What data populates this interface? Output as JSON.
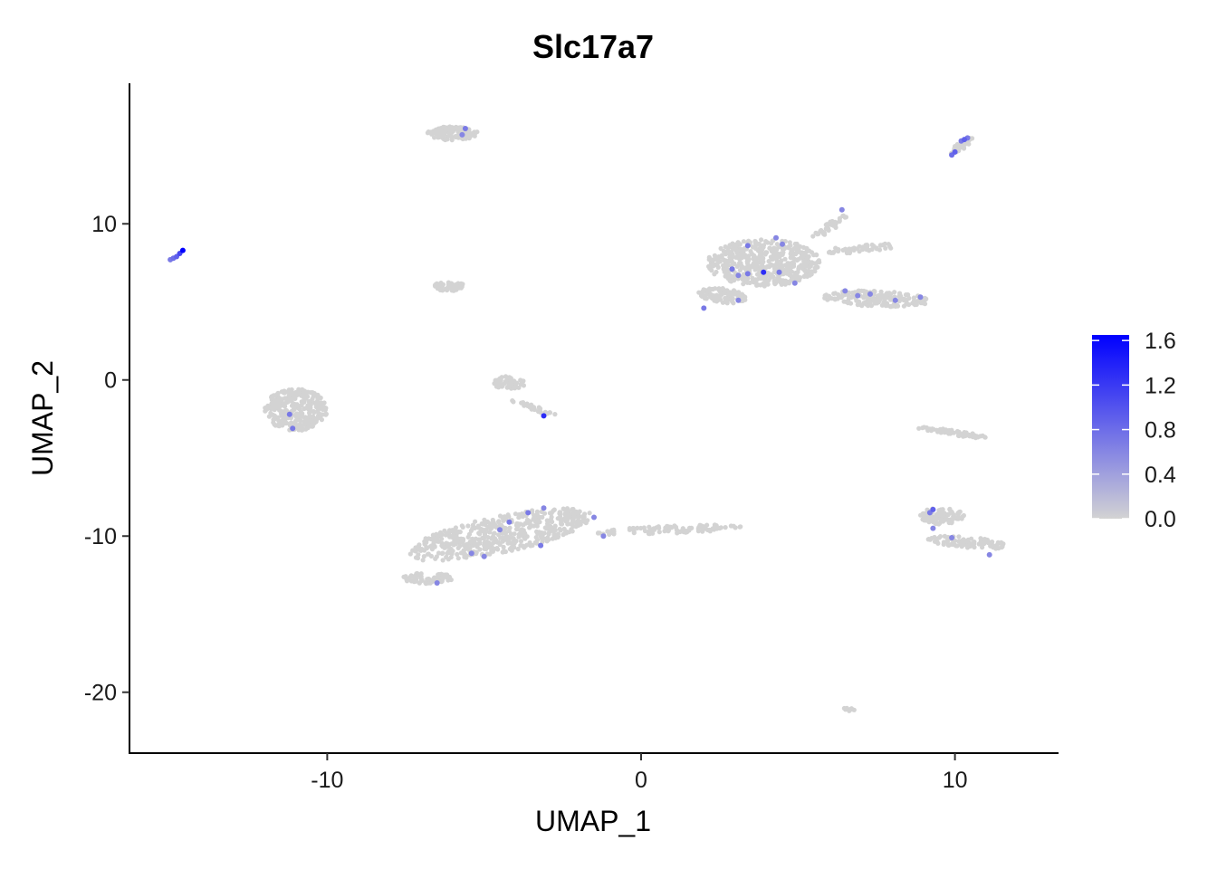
{
  "chart_data": {
    "type": "scatter",
    "title": "Slc17a7",
    "xlabel": "UMAP_1",
    "ylabel": "UMAP_2",
    "xlim": [
      -16.3,
      13.3
    ],
    "ylim": [
      -23.9,
      19
    ],
    "x_ticks": [
      -10,
      0,
      10
    ],
    "x_tick_labels": [
      "-10",
      "0",
      "10"
    ],
    "y_ticks": [
      -20,
      -10,
      0,
      10
    ],
    "y_tick_labels": [
      "-20",
      "-10",
      "0",
      "10"
    ],
    "grid": false,
    "legend_position": "right",
    "color_scale": {
      "low_color": "#d3d3d3",
      "high_color": "#0000ff",
      "range": [
        0,
        1.65
      ],
      "breaks": [
        1.6,
        1.2,
        0.8,
        0.4,
        0.0
      ],
      "break_labels": [
        "1.6",
        "1.2",
        "0.8",
        "0.4",
        "0.0"
      ]
    },
    "background_clusters": [
      {
        "cx": -6.0,
        "cy": 15.8,
        "rx": 0.8,
        "ry": 0.45,
        "angle": 0,
        "n": 140
      },
      {
        "cx": -6.1,
        "cy": 6.0,
        "rx": 0.5,
        "ry": 0.3,
        "angle": 0,
        "n": 60
      },
      {
        "cx": -11.0,
        "cy": -1.9,
        "rx": 1.0,
        "ry": 1.35,
        "angle": 0,
        "n": 300
      },
      {
        "cx": -4.2,
        "cy": -0.2,
        "rx": 0.5,
        "ry": 0.45,
        "angle": 0,
        "n": 50
      },
      {
        "cx": -3.4,
        "cy": -1.8,
        "rx": 0.9,
        "ry": 0.12,
        "angle": -35,
        "n": 30
      },
      {
        "cx": -4.5,
        "cy": -9.9,
        "rx": 3.2,
        "ry": 1.1,
        "angle": 25,
        "n": 520
      },
      {
        "cx": -6.8,
        "cy": -12.7,
        "rx": 0.8,
        "ry": 0.35,
        "angle": 0,
        "n": 60
      },
      {
        "cx": 0.9,
        "cy": -9.6,
        "rx": 2.3,
        "ry": 0.25,
        "angle": 5,
        "n": 90
      },
      {
        "cx": 3.9,
        "cy": 7.5,
        "rx": 1.8,
        "ry": 1.5,
        "angle": 0,
        "n": 500
      },
      {
        "cx": 2.6,
        "cy": 5.4,
        "rx": 0.8,
        "ry": 0.45,
        "angle": -20,
        "n": 90
      },
      {
        "cx": 6.0,
        "cy": 9.8,
        "rx": 0.9,
        "ry": 0.2,
        "angle": 55,
        "n": 40
      },
      {
        "cx": 7.0,
        "cy": 8.4,
        "rx": 1.2,
        "ry": 0.25,
        "angle": 10,
        "n": 50
      },
      {
        "cx": 7.5,
        "cy": 5.2,
        "rx": 1.7,
        "ry": 0.5,
        "angle": -5,
        "n": 170
      },
      {
        "cx": 10.2,
        "cy": 15.0,
        "rx": 0.6,
        "ry": 0.18,
        "angle": 55,
        "n": 40
      },
      {
        "cx": 10.0,
        "cy": -3.4,
        "rx": 1.3,
        "ry": 0.15,
        "angle": -17,
        "n": 60
      },
      {
        "cx": 9.6,
        "cy": -8.7,
        "rx": 0.7,
        "ry": 0.55,
        "angle": 0,
        "n": 90
      },
      {
        "cx": 10.4,
        "cy": -10.4,
        "rx": 1.3,
        "ry": 0.35,
        "angle": -10,
        "n": 100
      },
      {
        "cx": 6.6,
        "cy": -21.1,
        "rx": 0.2,
        "ry": 0.12,
        "angle": 0,
        "n": 10
      }
    ],
    "expressing_points": [
      {
        "x": -14.6,
        "y": 8.3,
        "value": 1.65
      },
      {
        "x": -14.7,
        "y": 8.1,
        "value": 1.1
      },
      {
        "x": -14.8,
        "y": 7.9,
        "value": 0.9
      },
      {
        "x": -15.0,
        "y": 7.7,
        "value": 0.7
      },
      {
        "x": -14.9,
        "y": 7.8,
        "value": 0.8
      },
      {
        "x": -5.6,
        "y": 16.1,
        "value": 0.7
      },
      {
        "x": -5.7,
        "y": 15.7,
        "value": 0.6
      },
      {
        "x": 10.3,
        "y": 15.4,
        "value": 0.9
      },
      {
        "x": 10.4,
        "y": 15.5,
        "value": 0.7
      },
      {
        "x": 10.0,
        "y": 14.6,
        "value": 0.9
      },
      {
        "x": 9.9,
        "y": 14.4,
        "value": 0.8
      },
      {
        "x": 10.2,
        "y": 15.3,
        "value": 0.7
      },
      {
        "x": -11.2,
        "y": -2.2,
        "value": 0.7
      },
      {
        "x": -11.1,
        "y": -3.1,
        "value": 0.7
      },
      {
        "x": -3.1,
        "y": -2.3,
        "value": 1.3
      },
      {
        "x": 3.4,
        "y": 8.6,
        "value": 0.7
      },
      {
        "x": 4.3,
        "y": 9.1,
        "value": 0.6
      },
      {
        "x": 4.5,
        "y": 8.7,
        "value": 0.6
      },
      {
        "x": 2.9,
        "y": 7.1,
        "value": 0.7
      },
      {
        "x": 3.1,
        "y": 6.7,
        "value": 0.6
      },
      {
        "x": 3.4,
        "y": 6.8,
        "value": 0.7
      },
      {
        "x": 3.9,
        "y": 6.9,
        "value": 1.3
      },
      {
        "x": 4.4,
        "y": 6.9,
        "value": 0.7
      },
      {
        "x": 4.9,
        "y": 6.2,
        "value": 0.6
      },
      {
        "x": 3.1,
        "y": 5.1,
        "value": 0.6
      },
      {
        "x": 2.0,
        "y": 4.6,
        "value": 0.7
      },
      {
        "x": 6.4,
        "y": 10.9,
        "value": 0.6
      },
      {
        "x": 6.5,
        "y": 5.7,
        "value": 0.6
      },
      {
        "x": 6.9,
        "y": 5.4,
        "value": 0.6
      },
      {
        "x": 7.3,
        "y": 5.5,
        "value": 0.6
      },
      {
        "x": 8.1,
        "y": 5.1,
        "value": 0.6
      },
      {
        "x": 8.9,
        "y": 5.3,
        "value": 0.6
      },
      {
        "x": -3.1,
        "y": -8.2,
        "value": 0.6
      },
      {
        "x": -3.6,
        "y": -8.5,
        "value": 0.7
      },
      {
        "x": -4.2,
        "y": -9.1,
        "value": 0.7
      },
      {
        "x": -4.5,
        "y": -9.6,
        "value": 0.6
      },
      {
        "x": -1.5,
        "y": -8.8,
        "value": 0.6
      },
      {
        "x": -1.2,
        "y": -10.0,
        "value": 0.6
      },
      {
        "x": -3.2,
        "y": -10.6,
        "value": 0.7
      },
      {
        "x": -5.4,
        "y": -11.1,
        "value": 0.6
      },
      {
        "x": -5.0,
        "y": -11.3,
        "value": 0.6
      },
      {
        "x": -6.5,
        "y": -13.0,
        "value": 0.6
      },
      {
        "x": 9.3,
        "y": -8.3,
        "value": 0.9
      },
      {
        "x": 9.2,
        "y": -8.5,
        "value": 0.7
      },
      {
        "x": 9.3,
        "y": -9.5,
        "value": 0.6
      },
      {
        "x": 9.9,
        "y": -10.1,
        "value": 0.6
      },
      {
        "x": 11.1,
        "y": -11.2,
        "value": 0.6
      }
    ]
  }
}
